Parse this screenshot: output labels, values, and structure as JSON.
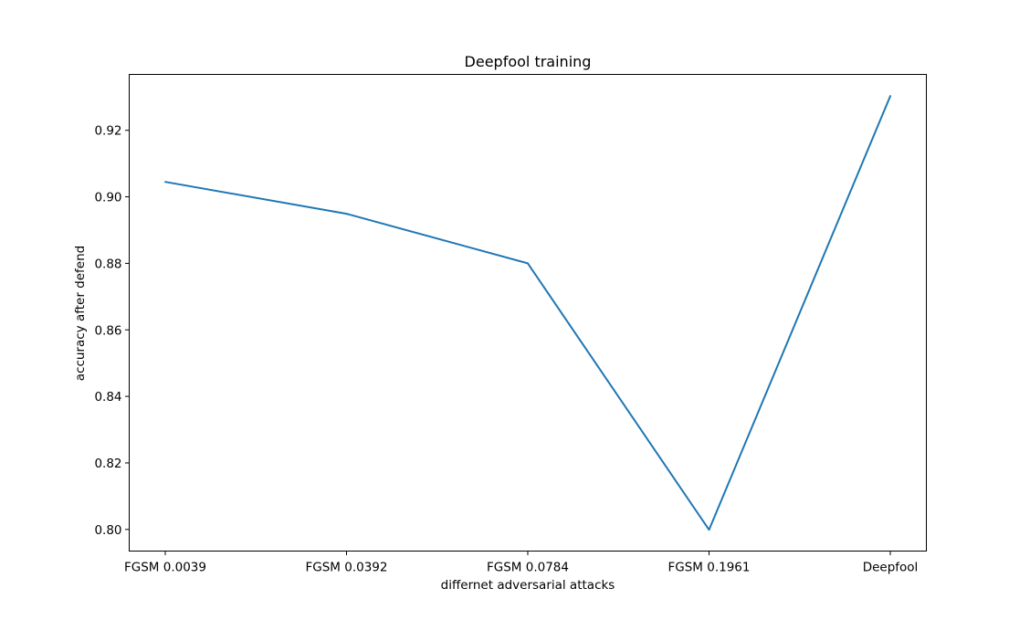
{
  "chart_data": {
    "type": "line",
    "title": "Deepfool training",
    "xlabel": "differnet adversarial attacks",
    "ylabel": "accuracy after defend",
    "categories": [
      "FGSM 0.0039",
      "FGSM 0.0392",
      "FGSM 0.0784",
      "FGSM 0.1961",
      "Deepfool"
    ],
    "series": [
      {
        "values": [
          0.9045,
          0.8949,
          0.88,
          0.7999,
          0.9303
        ],
        "color": "#1f77b4"
      }
    ],
    "ylim": [
      0.7935,
      0.9368
    ],
    "yticks": [
      0.8,
      0.82,
      0.84,
      0.86,
      0.88,
      0.9,
      0.92
    ],
    "ytick_labels": [
      "0.80",
      "0.82",
      "0.84",
      "0.86",
      "0.88",
      "0.90",
      "0.92"
    ],
    "grid": false,
    "legend": false
  }
}
